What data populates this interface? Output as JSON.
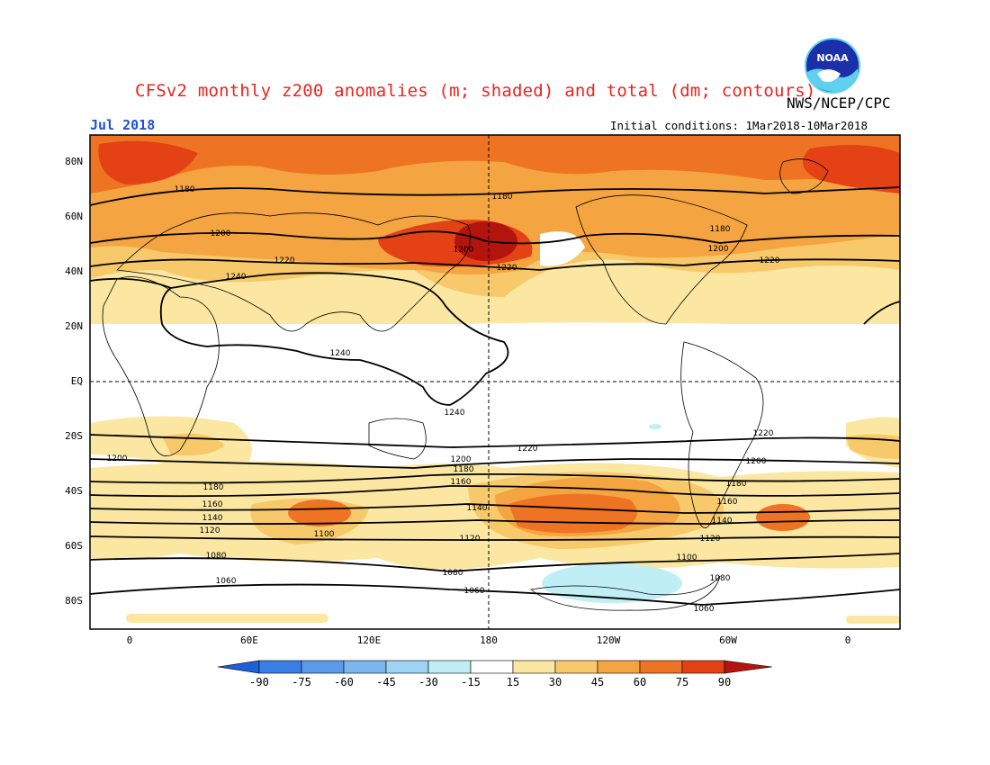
{
  "header": {
    "title": "CFSv2 monthly z200 anomalies (m; shaded) and total (dm; contours)",
    "agency": "NWS/NCEP/CPC",
    "month": "Jul 2018",
    "initial_conditions": "Initial conditions: 1Mar2018-10Mar2018",
    "logo_text": "NOAA"
  },
  "axes": {
    "lat_labels": [
      "80N",
      "60N",
      "40N",
      "20N",
      "EQ",
      "20S",
      "40S",
      "60S",
      "80S"
    ],
    "lon_labels": [
      "0",
      "60E",
      "120E",
      "180",
      "120W",
      "60W",
      "0"
    ]
  },
  "contour_labels": {
    "north": [
      "1180",
      "1180",
      "1180",
      "1200",
      "1200",
      "1200",
      "1220",
      "1220",
      "1220",
      "1240",
      "1240",
      "1240"
    ],
    "south": [
      "1220",
      "1220",
      "1200",
      "1200",
      "1200",
      "1180",
      "1180",
      "1180",
      "1160",
      "1160",
      "1160",
      "1140",
      "1140",
      "1140",
      "1120",
      "1120",
      "1120",
      "1100",
      "1100",
      "1080",
      "1080",
      "1080",
      "1060",
      "1060",
      "1060"
    ]
  },
  "colorbar": {
    "labels": [
      "-90",
      "-75",
      "-60",
      "-45",
      "-30",
      "-15",
      "15",
      "30",
      "45",
      "60",
      "75",
      "90"
    ],
    "colors": [
      "#1f5fd8",
      "#3a7fe6",
      "#5a9ae8",
      "#7bb6ee",
      "#9ed3f2",
      "#bfeef4",
      "#ffffff",
      "#fbe7a1",
      "#f8c96a",
      "#f4a440",
      "#ee7423",
      "#e44214",
      "#b4140e"
    ]
  }
}
